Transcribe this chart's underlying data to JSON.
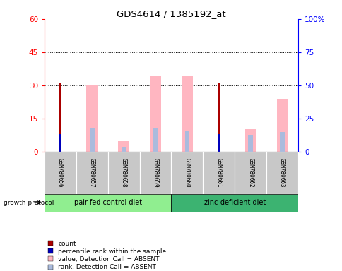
{
  "title": "GDS4614 / 1385192_at",
  "samples": [
    "GSM780656",
    "GSM780657",
    "GSM780658",
    "GSM780659",
    "GSM780660",
    "GSM780661",
    "GSM780662",
    "GSM780663"
  ],
  "count_values": [
    31,
    0,
    0,
    0,
    0,
    31,
    0,
    0
  ],
  "percentile_rank_values": [
    13.5,
    0,
    0,
    0,
    0,
    13.5,
    0,
    0
  ],
  "value_absent": [
    0,
    50,
    8,
    57,
    57,
    0,
    17,
    40
  ],
  "rank_absent": [
    0,
    18,
    4,
    18,
    16,
    0,
    12,
    15
  ],
  "left_ylim": [
    0,
    60
  ],
  "right_ylim": [
    0,
    100
  ],
  "left_yticks": [
    0,
    15,
    30,
    45,
    60
  ],
  "right_yticks": [
    0,
    25,
    50,
    75,
    100
  ],
  "right_yticklabels": [
    "0",
    "25",
    "50",
    "75",
    "100%"
  ],
  "group1_label": "pair-fed control diet",
  "group2_label": "zinc-deficient diet",
  "group1_color": "#90EE90",
  "group2_color": "#3CB371",
  "protocol_label": "growth protocol",
  "count_color": "#AA0000",
  "rank_color": "#0000BB",
  "value_absent_color": "#FFB6C1",
  "rank_absent_color": "#AABBDD",
  "sample_bg_color": "#C8C8C8",
  "plot_bg_color": "#FFFFFF",
  "legend_items": [
    "count",
    "percentile rank within the sample",
    "value, Detection Call = ABSENT",
    "rank, Detection Call = ABSENT"
  ],
  "legend_colors": [
    "#AA0000",
    "#0000BB",
    "#FFB6C1",
    "#AABBDD"
  ]
}
